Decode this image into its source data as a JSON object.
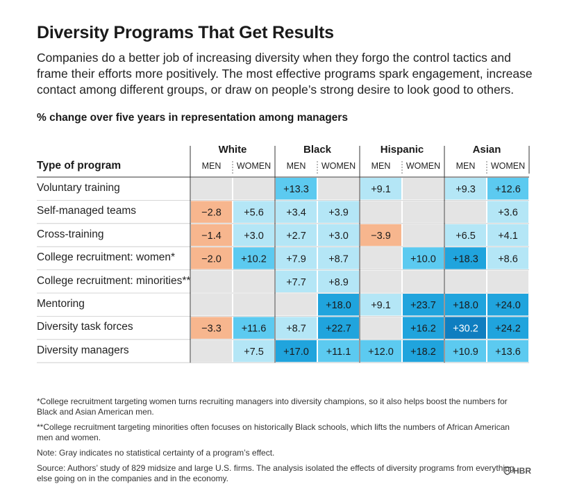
{
  "title": "Diversity Programs That Get Results",
  "subtitle": "Companies do a better job of increasing diversity when they forgo the control tactics and frame their efforts more positively. The most effective programs spark engagement, increase contact among different groups, or draw on people’s strong desire to look good to others.",
  "colors": {
    "gray": "#e4e4e4",
    "negative": "#f7b68e",
    "scale_1": "#b4e6f6",
    "scale_2": "#5ccaf0",
    "scale_3": "#20a4dd",
    "scale_4": "#0f7ec0",
    "grid": "#c8c8c8",
    "axis": "#333333"
  },
  "chart_data": {
    "type": "table",
    "title": "% change over five years in representation among managers",
    "row_header": "Type of program",
    "groups": [
      "White",
      "Black",
      "Hispanic",
      "Asian"
    ],
    "subcolumns": [
      "MEN",
      "WOMEN"
    ],
    "columns": [
      "White MEN",
      "White WOMEN",
      "Black MEN",
      "Black WOMEN",
      "Hispanic MEN",
      "Hispanic WOMEN",
      "Asian MEN",
      "Asian WOMEN"
    ],
    "rows": [
      {
        "label": "Voluntary training",
        "values": [
          null,
          null,
          13.3,
          null,
          9.1,
          null,
          9.3,
          12.6
        ]
      },
      {
        "label": "Self-managed teams",
        "values": [
          -2.8,
          5.6,
          3.4,
          3.9,
          null,
          null,
          null,
          3.6
        ]
      },
      {
        "label": "Cross-training",
        "values": [
          -1.4,
          3.0,
          2.7,
          3.0,
          -3.9,
          null,
          6.5,
          4.1
        ]
      },
      {
        "label": "College recruitment: women*",
        "values": [
          -2.0,
          10.2,
          7.9,
          8.7,
          null,
          10.0,
          18.3,
          8.6
        ]
      },
      {
        "label": "College recruitment: minorities**",
        "values": [
          null,
          null,
          7.7,
          8.9,
          null,
          null,
          null,
          null
        ]
      },
      {
        "label": "Mentoring",
        "values": [
          null,
          null,
          null,
          18.0,
          9.1,
          23.7,
          18.0,
          24.0
        ]
      },
      {
        "label": "Diversity task forces",
        "values": [
          -3.3,
          11.6,
          8.7,
          22.7,
          null,
          16.2,
          30.2,
          24.2
        ]
      },
      {
        "label": "Diversity managers",
        "values": [
          null,
          7.5,
          17.0,
          11.1,
          12.0,
          18.2,
          10.9,
          13.6
        ]
      }
    ],
    "legend_note": "Gray indicates no statistical certainty of a program’s effect."
  },
  "notes": [
    "*College recruitment targeting women turns recruiting managers into diversity champions, so it also helps boost the numbers for Black and Asian American men.",
    "**College recruitment targeting minorities often focuses on historically Black schools, which lifts the numbers of African American men and women.",
    "Note: Gray indicates no statistical certainty of a program’s effect.",
    "Source: Authors’ study of 829 midsize and large U.S. firms. The analysis isolated the effects of diversity programs from everything else going on in the companies and in the economy."
  ],
  "logo": {
    "text": "HBR",
    "icon": "hbr-shield-icon"
  }
}
